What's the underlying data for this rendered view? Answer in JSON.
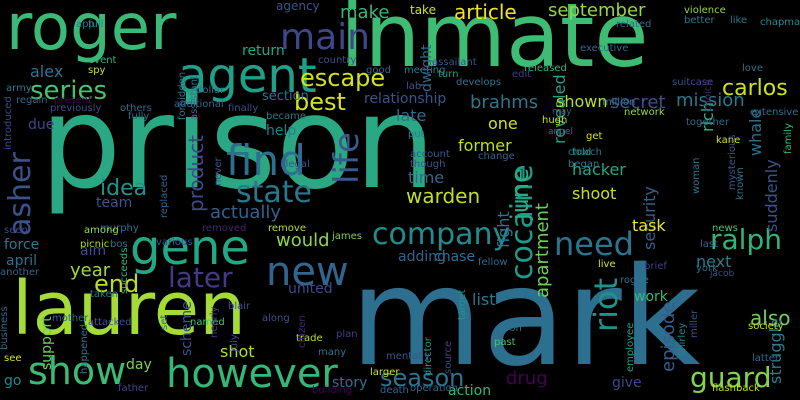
{
  "words": [
    {
      "text": "prison",
      "color": "#2aa883"
    },
    {
      "text": "mark",
      "color": "#2c6f8e"
    },
    {
      "text": "inmate",
      "color": "#3ebc73"
    },
    {
      "text": "lauren",
      "color": "#a5db36"
    },
    {
      "text": "roger",
      "color": "#3aba76"
    },
    {
      "text": "agent",
      "color": "#1fa088"
    },
    {
      "text": "gene",
      "color": "#22a884"
    },
    {
      "text": "find",
      "color": "#2e6e8e"
    },
    {
      "text": "however",
      "color": "#35b779"
    },
    {
      "text": "show",
      "color": "#3cbb75"
    },
    {
      "text": "new",
      "color": "#31668e"
    },
    {
      "text": "main",
      "color": "#3f4788"
    },
    {
      "text": "state",
      "color": "#2a788e"
    },
    {
      "text": "company",
      "color": "#228c8d"
    },
    {
      "text": "need",
      "color": "#2c738e"
    },
    {
      "text": "ralph",
      "color": "#2fb47c"
    },
    {
      "text": "riot",
      "color": "#21918c"
    },
    {
      "text": "life",
      "color": "#38598c"
    },
    {
      "text": "asher",
      "color": "#3b528b"
    },
    {
      "text": "cocaine",
      "color": "#1f9a8a"
    },
    {
      "text": "june",
      "color": "#27ad81"
    },
    {
      "text": "guard",
      "color": "#84d44b"
    },
    {
      "text": "season",
      "color": "#2c738e"
    },
    {
      "text": "series",
      "color": "#4ac16d"
    },
    {
      "text": "later",
      "color": "#443983"
    },
    {
      "text": "end",
      "color": "#b8de29"
    },
    {
      "text": "carlos",
      "color": "#d0e11c"
    },
    {
      "text": "mission",
      "color": "#2a788e"
    },
    {
      "text": "secret",
      "color": "#3b528b"
    },
    {
      "text": "brahms",
      "color": "#2a778e"
    },
    {
      "text": "best",
      "color": "#d8e219"
    },
    {
      "text": "escape",
      "color": "#d2e21b"
    },
    {
      "text": "warden",
      "color": "#c2df23"
    },
    {
      "text": "actually",
      "color": "#33638d"
    },
    {
      "text": "idea",
      "color": "#21918c"
    },
    {
      "text": "product",
      "color": "#3e4a89"
    },
    {
      "text": "also",
      "color": "#73d056"
    },
    {
      "text": "alex",
      "color": "#2a768e"
    },
    {
      "text": "article",
      "color": "#f1e51d"
    },
    {
      "text": "september",
      "color": "#93d741"
    },
    {
      "text": "make",
      "color": "#35b779"
    },
    {
      "text": "apartment",
      "color": "#6ece58"
    },
    {
      "text": "episode",
      "color": "#365c8d"
    },
    {
      "text": "would",
      "color": "#8ed645"
    },
    {
      "text": "year",
      "color": "#a0da39"
    },
    {
      "text": "drug",
      "color": "#440154"
    },
    {
      "text": "time",
      "color": "#31688e"
    },
    {
      "text": "hacker",
      "color": "#22a785"
    },
    {
      "text": "shoot",
      "color": "#c8e020"
    },
    {
      "text": "former",
      "color": "#bddf26"
    },
    {
      "text": "one",
      "color": "#d5e21a"
    },
    {
      "text": "late",
      "color": "#2f6c8e"
    },
    {
      "text": "relationship",
      "color": "#3a548c"
    },
    {
      "text": "security",
      "color": "#34608d"
    },
    {
      "text": "whale",
      "color": "#2e6f8e"
    },
    {
      "text": "suddenly",
      "color": "#3b528b"
    },
    {
      "text": "struggle",
      "color": "#287d8e"
    },
    {
      "text": "rich",
      "color": "#31b57b"
    },
    {
      "text": "revealed",
      "color": "#20a386"
    },
    {
      "text": "shown",
      "color": "#b5de2b"
    },
    {
      "text": "fight",
      "color": "#2a768e"
    },
    {
      "text": "task",
      "color": "#efe51c"
    },
    {
      "text": "next",
      "color": "#287c8e"
    },
    {
      "text": "chase",
      "color": "#2e6f8e"
    },
    {
      "text": "adding",
      "color": "#33638d"
    },
    {
      "text": "list",
      "color": "#2a788e"
    },
    {
      "text": "work",
      "color": "#38b977"
    },
    {
      "text": "action",
      "color": "#32b67a"
    },
    {
      "text": "give",
      "color": "#3f4889"
    },
    {
      "text": "story",
      "color": "#2d718e"
    },
    {
      "text": "shot",
      "color": "#ade028"
    },
    {
      "text": "day",
      "color": "#7cd250"
    },
    {
      "text": "united",
      "color": "#3f4788"
    },
    {
      "text": "help",
      "color": "#26828e"
    },
    {
      "text": "team",
      "color": "#3b528b"
    },
    {
      "text": "force",
      "color": "#2a788e"
    },
    {
      "text": "april",
      "color": "#2d718e"
    },
    {
      "text": "support",
      "color": "#6ece58"
    },
    {
      "text": "scheme",
      "color": "#3b518b"
    },
    {
      "text": "section",
      "color": "#2c728e"
    },
    {
      "text": "return",
      "color": "#22a884"
    },
    {
      "text": "due",
      "color": "#3f4788"
    },
    {
      "text": "go",
      "color": "#23888e"
    },
    {
      "text": "dwight",
      "color": "#31688e"
    },
    {
      "text": "agency",
      "color": "#3b528b"
    },
    {
      "text": "take",
      "color": "#d0e11c"
    },
    {
      "text": "hugh",
      "color": "#cde11d"
    },
    {
      "text": "told",
      "color": "#1f9f88"
    },
    {
      "text": "church",
      "color": "#2e6e8e"
    },
    {
      "text": "network",
      "color": "#95d840"
    },
    {
      "text": "angel",
      "color": "#2c738e"
    },
    {
      "text": "get",
      "color": "#d8e219"
    },
    {
      "text": "kane",
      "color": "#d0e11c"
    },
    {
      "text": "news",
      "color": "#46c06f"
    },
    {
      "text": "york",
      "color": "#2e6e8e"
    },
    {
      "text": "jacob",
      "color": "#3e4989"
    },
    {
      "text": "last",
      "color": "#31688e"
    },
    {
      "text": "soon",
      "color": "#2a768e"
    },
    {
      "text": "past",
      "color": "#4ec36b"
    },
    {
      "text": "director",
      "color": "#1f9a8a"
    },
    {
      "text": "source",
      "color": "#3f4788"
    },
    {
      "text": "target",
      "color": "#21918c"
    },
    {
      "text": "trade",
      "color": "#b5de2b"
    },
    {
      "text": "plan",
      "color": "#423f85"
    },
    {
      "text": "many",
      "color": "#2c738e"
    },
    {
      "text": "blair",
      "color": "#3d4d8a"
    },
    {
      "text": "named",
      "color": "#4ac16d"
    },
    {
      "text": "along",
      "color": "#3b528b"
    },
    {
      "text": "picnic",
      "color": "#addc30"
    },
    {
      "text": "murphy",
      "color": "#2d708e"
    },
    {
      "text": "james",
      "color": "#7ad151"
    },
    {
      "text": "remove",
      "color": "#b8de29"
    },
    {
      "text": "removed",
      "color": "#482475"
    },
    {
      "text": "seen",
      "color": "#3e4989"
    },
    {
      "text": "another",
      "color": "#33638d"
    },
    {
      "text": "taken",
      "color": "#287d8e"
    },
    {
      "text": "attacked",
      "color": "#3a548c"
    },
    {
      "text": "happened",
      "color": "#2c738e"
    },
    {
      "text": "mother",
      "color": "#31688e"
    },
    {
      "text": "business",
      "color": "#306a8e"
    },
    {
      "text": "see",
      "color": "#d5e21a"
    },
    {
      "text": "father",
      "color": "#3f4788"
    },
    {
      "text": "building",
      "color": "#440154"
    },
    {
      "text": "death",
      "color": "#32648e"
    },
    {
      "text": "operation",
      "color": "#31688e"
    },
    {
      "text": "flashback",
      "color": "#c2df23"
    },
    {
      "text": "society",
      "color": "#c0df25"
    },
    {
      "text": "latter",
      "color": "#306a8e"
    },
    {
      "text": "employee",
      "color": "#1f9e89"
    },
    {
      "text": "shirley",
      "color": "#26828e"
    },
    {
      "text": "miller",
      "color": "#3c4f8a"
    },
    {
      "text": "brief",
      "color": "#414287"
    },
    {
      "text": "rogue",
      "color": "#2c728e"
    },
    {
      "text": "live",
      "color": "#d2e21b"
    },
    {
      "text": "began",
      "color": "#2a788e"
    },
    {
      "text": "account",
      "color": "#3a548c"
    },
    {
      "text": "though",
      "color": "#3b528b"
    },
    {
      "text": "put",
      "color": "#287c8e"
    },
    {
      "text": "change",
      "color": "#33638d"
    },
    {
      "text": "fellow",
      "color": "#306a8e"
    },
    {
      "text": "larger",
      "color": "#c8e020"
    },
    {
      "text": "full",
      "color": "#277f8e"
    },
    {
      "text": "app",
      "color": "#2c728e"
    },
    {
      "text": "event",
      "color": "#31b57b"
    },
    {
      "text": "spy",
      "color": "#c5e021"
    },
    {
      "text": "army",
      "color": "#2a788e"
    },
    {
      "text": "regain",
      "color": "#32648e"
    },
    {
      "text": "present",
      "color": "#440154"
    },
    {
      "text": "previously",
      "color": "#3d4e8a"
    },
    {
      "text": "fully",
      "color": "#306a8e"
    },
    {
      "text": "others",
      "color": "#2e6e8e"
    },
    {
      "text": "forbidden",
      "color": "#2c718e"
    },
    {
      "text": "assistant",
      "color": "#2a768e"
    },
    {
      "text": "replaced",
      "color": "#32648e"
    },
    {
      "text": "various",
      "color": "#3b528b"
    },
    {
      "text": "among",
      "color": "#95d840"
    },
    {
      "text": "introduced",
      "color": "#3e4a89"
    },
    {
      "text": "dollar",
      "color": "#2b758e"
    },
    {
      "text": "country",
      "color": "#3d4e8a"
    },
    {
      "text": "good",
      "color": "#32648e"
    },
    {
      "text": "meeting",
      "color": "#287c8e"
    },
    {
      "text": "lab",
      "color": "#38598c"
    },
    {
      "text": "assailant",
      "color": "#3b528b"
    },
    {
      "text": "turn",
      "color": "#1f9f88"
    },
    {
      "text": "develops",
      "color": "#2c738e"
    },
    {
      "text": "edit",
      "color": "#433e85"
    },
    {
      "text": "released",
      "color": "#31b57b"
    },
    {
      "text": "executive",
      "color": "#31688e"
    },
    {
      "text": "related",
      "color": "#2e6e8e"
    },
    {
      "text": "violence",
      "color": "#8fd744"
    },
    {
      "text": "better",
      "color": "#2a788e"
    },
    {
      "text": "like",
      "color": "#2a788e"
    },
    {
      "text": "chapman",
      "color": "#23888e"
    },
    {
      "text": "suitcase",
      "color": "#3b518b"
    },
    {
      "text": "love",
      "color": "#2c728e"
    },
    {
      "text": "extensive",
      "color": "#2e6e8e"
    },
    {
      "text": "family",
      "color": "#35b779"
    },
    {
      "text": "together",
      "color": "#306a8e"
    },
    {
      "text": "choice",
      "color": "#482475"
    },
    {
      "text": "may",
      "color": "#32648e"
    },
    {
      "text": "million",
      "color": "#2a788e"
    },
    {
      "text": "woman",
      "color": "#2d718e"
    },
    {
      "text": "mysterious",
      "color": "#3a548c"
    },
    {
      "text": "known",
      "color": "#2c728e"
    },
    {
      "text": "illegal",
      "color": "#3b528b"
    },
    {
      "text": "additional",
      "color": "#33638d"
    },
    {
      "text": "finally",
      "color": "#3d4e8a"
    },
    {
      "text": "became",
      "color": "#2a788e"
    },
    {
      "text": "never",
      "color": "#38598c"
    },
    {
      "text": "july",
      "color": "#3f4788"
    },
    {
      "text": "nearly",
      "color": "#433e85"
    },
    {
      "text": "succeeds",
      "color": "#35b779"
    },
    {
      "text": "citizen",
      "color": "#482475"
    },
    {
      "text": "set",
      "color": "#2c728e"
    },
    {
      "text": "aim",
      "color": "#3e4a89"
    },
    {
      "text": "bos",
      "color": "#2d718e"
    },
    {
      "text": "mentally",
      "color": "#3a548c"
    }
  ]
}
